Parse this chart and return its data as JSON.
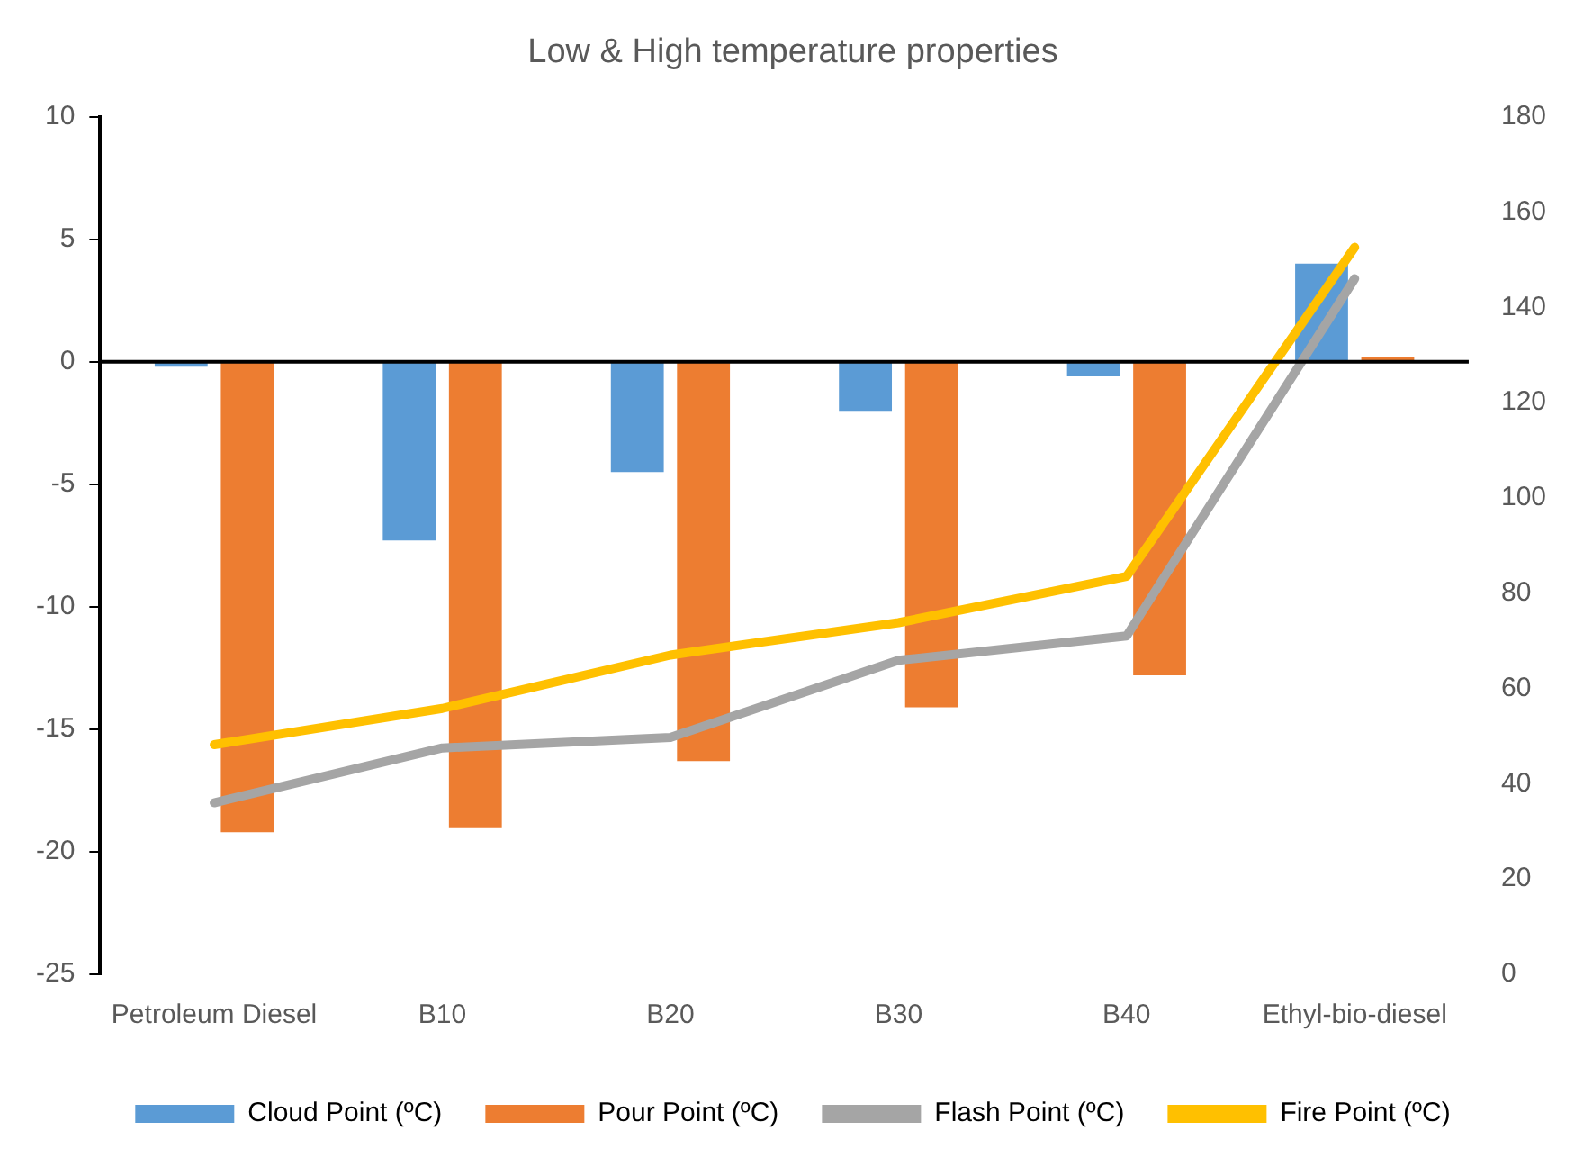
{
  "chart_data": {
    "type": "bar",
    "title": "Low & High temperature properties",
    "categories": [
      "Petroleum Diesel",
      "B10",
      "B20",
      "B30",
      "B40",
      "Ethyl-bio-diesel"
    ],
    "series": [
      {
        "name": "Cloud Point (ºC)",
        "color": "#5b9bd5",
        "values": [
          -0.2,
          -7.3,
          -4.5,
          -2.0,
          -0.6,
          4.0
        ]
      },
      {
        "name": "Pour Point (ºC)",
        "color": "#ed7d31",
        "values": [
          -19.2,
          -19.0,
          -16.3,
          -14.1,
          -12.8,
          0.2
        ]
      },
      {
        "name": "Flash Point (ºC)",
        "color": "#a5a5a5",
        "type": "line",
        "axis": "y2",
        "values": [
          36,
          47.5,
          49.7,
          65.9,
          71,
          146
        ]
      },
      {
        "name": "Fire Point (ºC)",
        "color": "#ffc000",
        "type": "line",
        "axis": "y2",
        "values": [
          48.2,
          55.8,
          67,
          73.8,
          83.5,
          152.6
        ]
      }
    ],
    "ylim": [
      -25,
      10
    ],
    "yticks": [
      -25,
      -20,
      -15,
      -10,
      -5,
      0,
      5,
      10
    ],
    "y2lim": [
      0,
      180
    ],
    "y2ticks": [
      0,
      20,
      40,
      60,
      80,
      100,
      120,
      140,
      160,
      180
    ],
    "ref_lines": [
      {
        "axis": "y",
        "value": 0,
        "color": "#000000"
      }
    ],
    "grid": false,
    "legend": "bottom",
    "marker": "none",
    "line_style": "solid"
  }
}
